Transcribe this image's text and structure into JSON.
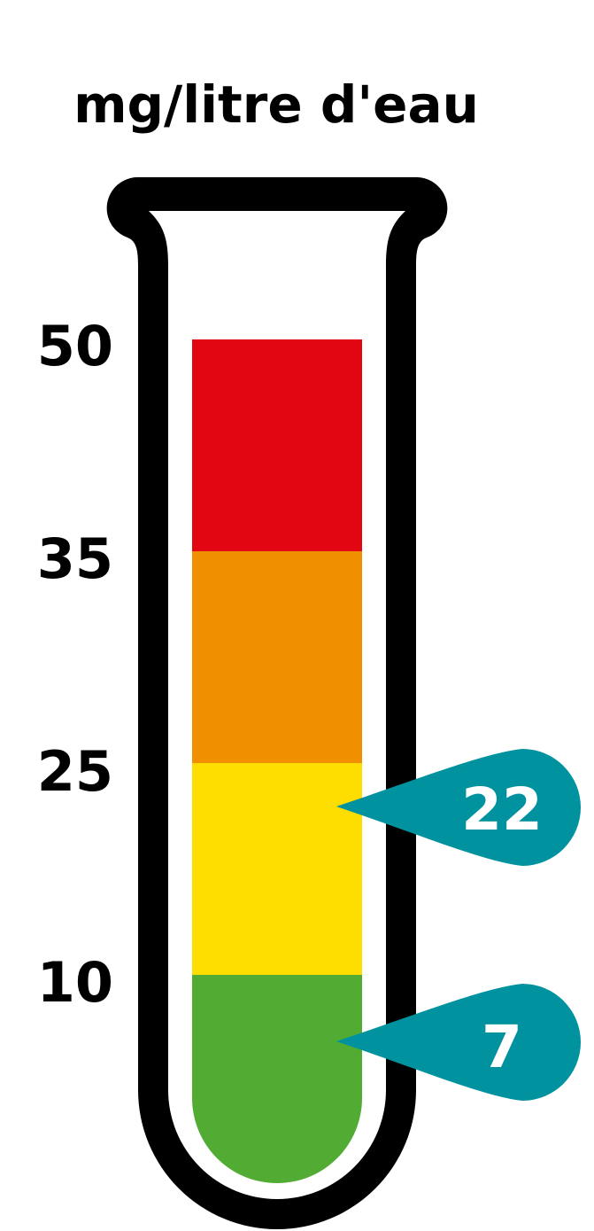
{
  "chart_data": {
    "type": "gauge",
    "unit_label": "mg/litre d'eau",
    "scale_ticks": [
      "50",
      "35",
      "25",
      "10"
    ],
    "bands": [
      {
        "from": 0,
        "to": 10,
        "color": "#52AC33"
      },
      {
        "from": 10,
        "to": 25,
        "color": "#FEDD00"
      },
      {
        "from": 25,
        "to": 35,
        "color": "#F08F00"
      },
      {
        "from": 35,
        "to": 50,
        "color": "#E20613"
      }
    ],
    "markers": [
      {
        "value": 22,
        "label": "22",
        "color": "#00929F"
      },
      {
        "value": 7,
        "label": "7",
        "color": "#00929F"
      }
    ],
    "colors": {
      "tube_outline": "#000000",
      "background": "#FFFFFF"
    }
  }
}
